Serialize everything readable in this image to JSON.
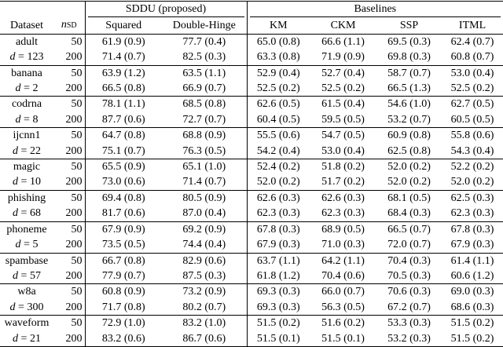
{
  "header": {
    "col_dataset": "Dataset",
    "col_nsd_var": "n",
    "col_nsd_sub": "SD",
    "group_sddu": "SDDU (proposed)",
    "group_baselines": "Baselines",
    "methods": [
      "Squared",
      "Double-Hinge",
      "KM",
      "CKM",
      "SSP",
      "ITML"
    ]
  },
  "datasets": [
    {
      "name": "adult",
      "d": "123",
      "rows": [
        {
          "n": "50",
          "cells": [
            {
              "v": "61.9 (0.9)",
              "b": false
            },
            {
              "v": "77.7 (0.4)",
              "b": true
            },
            {
              "v": "65.0 (0.8)",
              "b": false
            },
            {
              "v": "66.6 (1.1)",
              "b": false
            },
            {
              "v": "69.5 (0.3)",
              "b": false
            },
            {
              "v": "62.4 (0.7)",
              "b": false
            }
          ]
        },
        {
          "n": "200",
          "cells": [
            {
              "v": "71.4 (0.7)",
              "b": false
            },
            {
              "v": "82.5 (0.3)",
              "b": true
            },
            {
              "v": "63.3 (0.8)",
              "b": false
            },
            {
              "v": "71.9 (0.9)",
              "b": false
            },
            {
              "v": "69.8 (0.3)",
              "b": false
            },
            {
              "v": "60.8 (0.7)",
              "b": false
            }
          ]
        }
      ]
    },
    {
      "name": "banana",
      "d": "2",
      "rows": [
        {
          "n": "50",
          "cells": [
            {
              "v": "63.9 (1.2)",
              "b": true
            },
            {
              "v": "63.5 (1.1)",
              "b": true
            },
            {
              "v": "52.9 (0.4)",
              "b": false
            },
            {
              "v": "52.7 (0.4)",
              "b": false
            },
            {
              "v": "58.7 (0.7)",
              "b": false
            },
            {
              "v": "53.0 (0.4)",
              "b": false
            }
          ]
        },
        {
          "n": "200",
          "cells": [
            {
              "v": "66.5 (0.8)",
              "b": true
            },
            {
              "v": "66.9 (0.7)",
              "b": true
            },
            {
              "v": "52.5 (0.2)",
              "b": false
            },
            {
              "v": "52.5 (0.2)",
              "b": false
            },
            {
              "v": "66.5 (1.3)",
              "b": true
            },
            {
              "v": "52.5 (0.2)",
              "b": false
            }
          ]
        }
      ]
    },
    {
      "name": "codrna",
      "d": "8",
      "rows": [
        {
          "n": "50",
          "cells": [
            {
              "v": "78.1 (1.1)",
              "b": true
            },
            {
              "v": "68.5 (0.8)",
              "b": false
            },
            {
              "v": "62.6 (0.5)",
              "b": false
            },
            {
              "v": "61.5 (0.4)",
              "b": false
            },
            {
              "v": "54.6 (1.0)",
              "b": false
            },
            {
              "v": "62.7 (0.5)",
              "b": false
            }
          ]
        },
        {
          "n": "200",
          "cells": [
            {
              "v": "87.7 (0.6)",
              "b": true
            },
            {
              "v": "72.7 (0.7)",
              "b": false
            },
            {
              "v": "60.4 (0.5)",
              "b": false
            },
            {
              "v": "59.5 (0.5)",
              "b": false
            },
            {
              "v": "53.2 (0.7)",
              "b": false
            },
            {
              "v": "60.5 (0.5)",
              "b": false
            }
          ]
        }
      ]
    },
    {
      "name": "ijcnn1",
      "d": "22",
      "rows": [
        {
          "n": "50",
          "cells": [
            {
              "v": "64.7 (0.8)",
              "b": false
            },
            {
              "v": "68.8 (0.9)",
              "b": true
            },
            {
              "v": "55.5 (0.6)",
              "b": false
            },
            {
              "v": "54.7 (0.5)",
              "b": false
            },
            {
              "v": "60.9 (0.8)",
              "b": false
            },
            {
              "v": "55.8 (0.6)",
              "b": false
            }
          ]
        },
        {
          "n": "200",
          "cells": [
            {
              "v": "75.1 (0.7)",
              "b": true
            },
            {
              "v": "76.3 (0.5)",
              "b": true
            },
            {
              "v": "54.2 (0.4)",
              "b": false
            },
            {
              "v": "53.0 (0.4)",
              "b": false
            },
            {
              "v": "62.5 (0.8)",
              "b": false
            },
            {
              "v": "54.3 (0.4)",
              "b": false
            }
          ]
        }
      ]
    },
    {
      "name": "magic",
      "d": "10",
      "rows": [
        {
          "n": "50",
          "cells": [
            {
              "v": "65.5 (0.9)",
              "b": true
            },
            {
              "v": "65.1 (1.0)",
              "b": true
            },
            {
              "v": "52.4 (0.2)",
              "b": false
            },
            {
              "v": "51.8 (0.2)",
              "b": false
            },
            {
              "v": "52.0 (0.2)",
              "b": false
            },
            {
              "v": "52.2 (0.2)",
              "b": false
            }
          ]
        },
        {
          "n": "200",
          "cells": [
            {
              "v": "73.0 (0.6)",
              "b": true
            },
            {
              "v": "71.4 (0.7)",
              "b": false
            },
            {
              "v": "52.0 (0.2)",
              "b": false
            },
            {
              "v": "51.7 (0.2)",
              "b": false
            },
            {
              "v": "52.0 (0.2)",
              "b": false
            },
            {
              "v": "52.0 (0.2)",
              "b": false
            }
          ]
        }
      ]
    },
    {
      "name": "phishing",
      "d": "68",
      "rows": [
        {
          "n": "50",
          "cells": [
            {
              "v": "69.4 (0.8)",
              "b": false
            },
            {
              "v": "80.5 (0.9)",
              "b": true
            },
            {
              "v": "62.6 (0.3)",
              "b": false
            },
            {
              "v": "62.6 (0.3)",
              "b": false
            },
            {
              "v": "68.1 (0.5)",
              "b": false
            },
            {
              "v": "62.5 (0.3)",
              "b": false
            }
          ]
        },
        {
          "n": "200",
          "cells": [
            {
              "v": "81.7 (0.6)",
              "b": false
            },
            {
              "v": "87.0 (0.4)",
              "b": true
            },
            {
              "v": "62.3 (0.3)",
              "b": false
            },
            {
              "v": "62.3 (0.3)",
              "b": false
            },
            {
              "v": "68.4 (0.3)",
              "b": false
            },
            {
              "v": "62.3 (0.3)",
              "b": false
            }
          ]
        }
      ]
    },
    {
      "name": "phoneme",
      "d": "5",
      "rows": [
        {
          "n": "50",
          "cells": [
            {
              "v": "67.9 (0.9)",
              "b": true
            },
            {
              "v": "69.2 (0.9)",
              "b": true
            },
            {
              "v": "67.8 (0.3)",
              "b": true
            },
            {
              "v": "68.9 (0.5)",
              "b": true
            },
            {
              "v": "66.5 (0.7)",
              "b": false
            },
            {
              "v": "67.8 (0.3)",
              "b": true
            }
          ]
        },
        {
          "n": "200",
          "cells": [
            {
              "v": "73.5 (0.5)",
              "b": true
            },
            {
              "v": "74.4 (0.4)",
              "b": true
            },
            {
              "v": "67.9 (0.3)",
              "b": false
            },
            {
              "v": "71.0 (0.3)",
              "b": false
            },
            {
              "v": "72.0 (0.7)",
              "b": false
            },
            {
              "v": "67.9 (0.3)",
              "b": false
            }
          ]
        }
      ]
    },
    {
      "name": "spambase",
      "d": "57",
      "rows": [
        {
          "n": "50",
          "cells": [
            {
              "v": "66.7 (0.8)",
              "b": false
            },
            {
              "v": "82.9 (0.6)",
              "b": true
            },
            {
              "v": "63.7 (1.1)",
              "b": false
            },
            {
              "v": "64.2 (1.1)",
              "b": false
            },
            {
              "v": "70.4 (0.3)",
              "b": false
            },
            {
              "v": "61.4 (1.1)",
              "b": false
            }
          ]
        },
        {
          "n": "200",
          "cells": [
            {
              "v": "77.9 (0.7)",
              "b": false
            },
            {
              "v": "87.5 (0.3)",
              "b": true
            },
            {
              "v": "61.8 (1.2)",
              "b": false
            },
            {
              "v": "70.4 (0.6)",
              "b": false
            },
            {
              "v": "70.5 (0.3)",
              "b": false
            },
            {
              "v": "60.6 (1.2)",
              "b": false
            }
          ]
        }
      ]
    },
    {
      "name": "w8a",
      "d": "300",
      "rows": [
        {
          "n": "50",
          "cells": [
            {
              "v": "60.8 (0.9)",
              "b": false
            },
            {
              "v": "73.2 (0.9)",
              "b": true
            },
            {
              "v": "69.3 (0.3)",
              "b": false
            },
            {
              "v": "66.0 (0.7)",
              "b": false
            },
            {
              "v": "70.6 (0.3)",
              "b": false
            },
            {
              "v": "69.0 (0.3)",
              "b": false
            }
          ]
        },
        {
          "n": "200",
          "cells": [
            {
              "v": "71.7 (0.8)",
              "b": false
            },
            {
              "v": "80.2 (0.7)",
              "b": true
            },
            {
              "v": "69.3 (0.3)",
              "b": false
            },
            {
              "v": "56.3 (0.5)",
              "b": false
            },
            {
              "v": "67.2 (0.7)",
              "b": false
            },
            {
              "v": "68.6 (0.3)",
              "b": false
            }
          ]
        }
      ]
    },
    {
      "name": "waveform",
      "d": "21",
      "rows": [
        {
          "n": "50",
          "cells": [
            {
              "v": "72.9 (1.0)",
              "b": false
            },
            {
              "v": "83.2 (1.0)",
              "b": true
            },
            {
              "v": "51.5 (0.2)",
              "b": false
            },
            {
              "v": "51.6 (0.2)",
              "b": false
            },
            {
              "v": "53.3 (0.3)",
              "b": false
            },
            {
              "v": "51.5 (0.2)",
              "b": false
            }
          ]
        },
        {
          "n": "200",
          "cells": [
            {
              "v": "83.2 (0.6)",
              "b": false
            },
            {
              "v": "86.7 (0.6)",
              "b": true
            },
            {
              "v": "51.5 (0.1)",
              "b": false
            },
            {
              "v": "51.5 (0.1)",
              "b": false
            },
            {
              "v": "53.2 (0.3)",
              "b": false
            },
            {
              "v": "51.5 (0.2)",
              "b": false
            }
          ]
        }
      ]
    }
  ]
}
